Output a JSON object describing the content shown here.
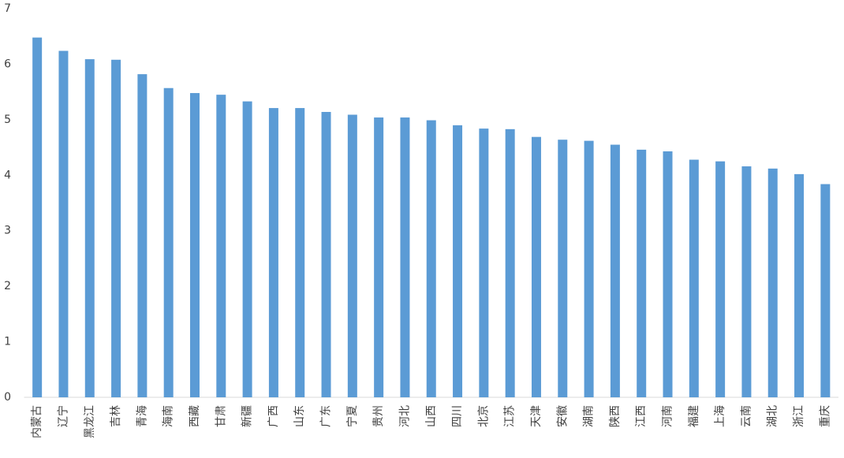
{
  "chart_data": {
    "type": "bar",
    "categories": [
      "内蒙古",
      "辽宁",
      "黑龙江",
      "吉林",
      "青海",
      "海南",
      "西藏",
      "甘肃",
      "新疆",
      "广西",
      "山东",
      "广东",
      "宁夏",
      "贵州",
      "河北",
      "山西",
      "四川",
      "北京",
      "江苏",
      "天津",
      "安徽",
      "湖南",
      "陕西",
      "江西",
      "河南",
      "福建",
      "上海",
      "云南",
      "湖北",
      "浙江",
      "重庆"
    ],
    "values": [
      6.48,
      6.24,
      6.09,
      6.08,
      5.82,
      5.57,
      5.48,
      5.45,
      5.33,
      5.21,
      5.21,
      5.14,
      5.09,
      5.04,
      5.04,
      4.99,
      4.9,
      4.84,
      4.83,
      4.69,
      4.64,
      4.62,
      4.55,
      4.46,
      4.43,
      4.28,
      4.25,
      4.16,
      4.12,
      4.02,
      3.84
    ],
    "color": "#5b9bd5",
    "ylim": [
      0,
      7
    ],
    "yticks": [
      0,
      1,
      2,
      3,
      4,
      5,
      6,
      7
    ],
    "grid": false
  }
}
